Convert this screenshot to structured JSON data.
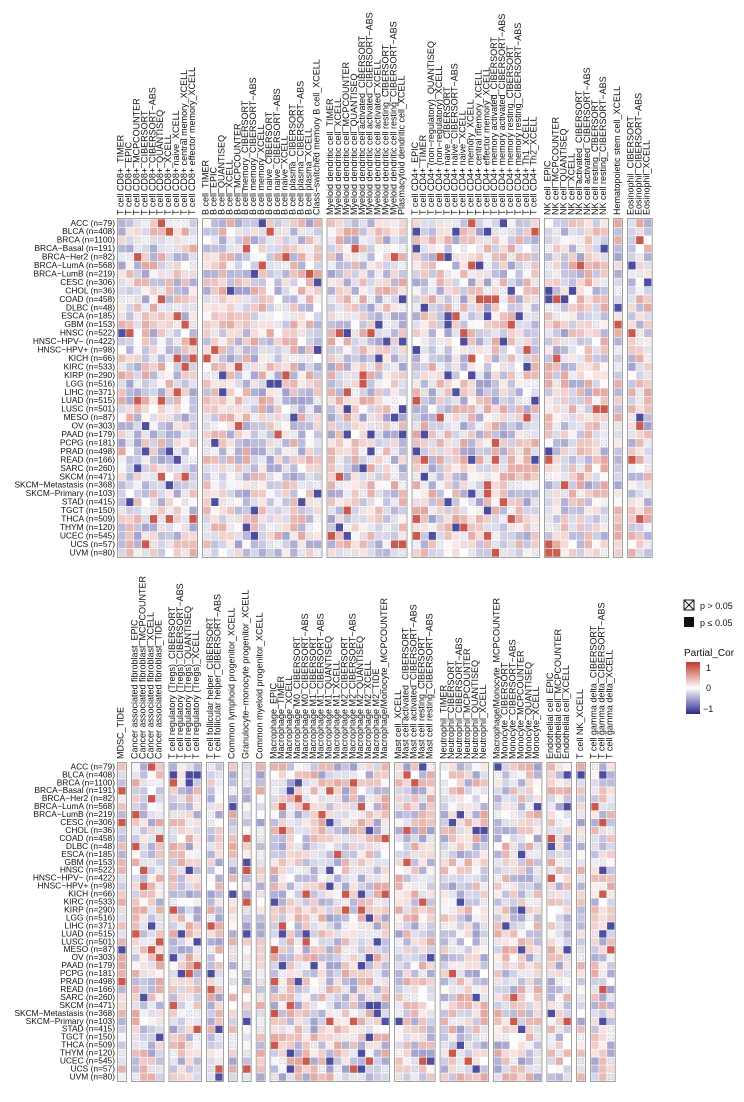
{
  "chart_data": {
    "type": "heatmap",
    "value_range": [
      -1,
      1
    ],
    "colors": {
      "negative": "#2b2a8c",
      "zero": "#ffffff",
      "positive": "#c0392b",
      "frame": "#8a8a8a",
      "highlight_label": "#c0392b"
    },
    "legend": {
      "nonsig_symbol_label": "p > 0.05",
      "sig_symbol_label": "p ≤ 0.05",
      "color_title": "Partial_Cor",
      "ticks": [
        "1",
        "0",
        "−1"
      ]
    },
    "rows": [
      "ACC (n=79)",
      "BLCA (n=408)",
      "BRCA (n=1100)",
      "BRCA−Basal (n=191)",
      "BRCA−Her2 (n=82)",
      "BRCA−LumA (n=568)",
      "BRCA−LumB (n=219)",
      "CESC (n=306)",
      "CHOL (n=36)",
      "COAD (n=458)",
      "DLBC (n=48)",
      "ESCA (n=185)",
      "GBM (n=153)",
      "HNSC (n=522)",
      "HNSC−HPV− (n=422)",
      "HNSC−HPV+ (n=98)",
      "KICH (n=66)",
      "KIRC (n=533)",
      "KIRP (n=290)",
      "LGG (n=516)",
      "LIHC (n=371)",
      "LUAD (n=515)",
      "LUSC (n=501)",
      "MESO (n=87)",
      "OV (n=303)",
      "PAAD (n=179)",
      "PCPG (n=181)",
      "PRAD (n=498)",
      "READ (n=166)",
      "SARC (n=260)",
      "SKCM (n=471)",
      "SKCM−Metastasis (n=368)",
      "SKCM−Primary (n=103)",
      "STAD (n=415)",
      "TGCT (n=150)",
      "THCA (n=509)",
      "THYM (n=120)",
      "UCEC (n=545)",
      "UCS (n=57)",
      "UVM (n=80)"
    ],
    "panels": [
      {
        "id": "top",
        "highlight_column": "T cell CD4+ Th2_XCELL",
        "groups": [
          [
            "T cell CD8+_TIMER",
            "T cell CD8+_EPIC",
            "T cell CD8+_MCPCOUNTER",
            "T cell CD8+_CIBERSORT",
            "T cell CD8+_CIBERSORT−ABS",
            "T cell CD8+_QUANTISEQ",
            "T cell CD8+_XCELL",
            "T cell CD8+ naive_XCELL",
            "T cell CD8+ central memory_XCELL",
            "T cell CD8+ effector memory_XCELL"
          ],
          [
            "B cell_TIMER",
            "B cell_EPIC",
            "B cell_QUANTISEQ",
            "B cell_XCELL",
            "B cell_MCPCOUNTER",
            "B cell memory_CIBERSORT",
            "B cell memory_CIBERSORT−ABS",
            "B cell memory_XCELL",
            "B cell naive_CIBERSORT",
            "B cell naive_CIBERSORT−ABS",
            "B cell naive_XCELL",
            "B cell plasma_CIBERSORT",
            "B cell plasma_CIBERSORT−ABS",
            "B cell plasma_XCELL",
            "Class−switched memory B cell_XCELL"
          ],
          [
            "Myeloid dendritic cell_TIMER",
            "Myeloid dendritic cell_XCELL",
            "Myeloid dendritic cell_MCPCOUNTER",
            "Myeloid dendritic cell_QUANTISEQ",
            "Myeloid dendritic cell activated_CIBERSORT",
            "Myeloid dendritic cell activated_CIBERSORT−ABS",
            "Myeloid dendritic cell activated_XCELL",
            "Myeloid dendritic cell resting_CIBERSORT",
            "Myeloid dendritic cell resting_CIBERSORT−ABS",
            "Plasmacytoid dendritic cell_XCELL"
          ],
          [
            "T cell CD4+_EPIC",
            "T cell CD4+_TIMER",
            "T cell CD4+ (non−regulatory)_QUANTISEQ",
            "T cell CD4+ (non−regulatory)_XCELL",
            "T cell CD4+ naive_CIBERSORT",
            "T cell CD4+ naive_CIBERSORT−ABS",
            "T cell CD4+ naive_XCELL",
            "T cell CD4+ memory_XCELL",
            "T cell CD4+ central memory_XCELL",
            "T cell CD4+ effector memory_XCELL",
            "T cell CD4+ memory activated_CIBERSORT",
            "T cell CD4+ memory activated_CIBERSORT−ABS",
            "T cell CD4+ memory resting_CIBERSORT",
            "T cell CD4+ memory resting_CIBERSORT−ABS",
            "T cell CD4+ Th1_XCELL",
            "T cell CD4+ Th2_XCELL"
          ],
          [
            "NK cell_EPIC",
            "NK cell_MCPCOUNTER",
            "NK cell_QUANTISEQ",
            "NK cell_XCELL",
            "NK cell activated_CIBERSORT",
            "NK cell activated_CIBERSORT−ABS",
            "NK cell resting_CIBERSORT",
            "NK cell resting_CIBERSORT−ABS"
          ],
          [
            "Hematopoietic stem cell_XCELL"
          ],
          [
            "Eosinophil_CIBERSORT",
            "Eosinophil_CIBERSORT−ABS",
            "Eosinophil_XCELL"
          ]
        ]
      },
      {
        "id": "bottom",
        "highlight_column": "MDSC_TIDE",
        "groups": [
          [
            "MDSC_TIDE"
          ],
          [
            "Cancer associated fibroblast_EPIC",
            "Cancer associated fibroblast_MCPCOUNTER",
            "Cancer associated fibroblast_XCELL",
            "Cancer associated fibroblast_TIDE"
          ],
          [
            "T cell regulatory (Tregs)_CIBERSORT",
            "T cell regulatory (Tregs)_CIBERSORT−ABS",
            "T cell regulatory (Tregs)_QUANTISEQ",
            "T cell regulatory (Tregs)_XCELL"
          ],
          [
            "T cell follicular helper_CIBERSORT",
            "T cell follicular helper_CIBERSORT−ABS"
          ],
          [
            "Common lymphoid progenitor_XCELL"
          ],
          [
            "Granulocyte−monocyte progenitor_XCELL"
          ],
          [
            "Common myeloid progenitor_XCELL"
          ],
          [
            "Macrophage_EPIC",
            "Macrophage_TIMER",
            "Macrophage_XCELL",
            "Macrophage M0_CIBERSORT",
            "Macrophage M0_CIBERSORT−ABS",
            "Macrophage M1_CIBERSORT",
            "Macrophage M1_CIBERSORT−ABS",
            "Macrophage M1_QUANTISEQ",
            "Macrophage M1_XCELL",
            "Macrophage M2_CIBERSORT",
            "Macrophage M2_CIBERSORT−ABS",
            "Macrophage M2_QUANTISEQ",
            "Macrophage M2_XCELL",
            "Macrophage M2_TIDE",
            "Macrophage/Monocyte_MCPCOUNTER"
          ],
          [
            "Mast cell_XCELL",
            "Mast cell activated_CIBERSORT",
            "Mast cell activated_CIBERSORT−ABS",
            "Mast cell resting_CIBERSORT",
            "Mast cell resting_CIBERSORT−ABS"
          ],
          [
            "Neutrophil_TIMER",
            "Neutrophil_CIBERSORT",
            "Neutrophil_CIBERSORT−ABS",
            "Neutrophil_MCPCOUNTER",
            "Neutrophil_QUANTISEQ",
            "Neutrophil_XCELL"
          ],
          [
            "Macrophage/Monocyte_MCPCOUNTER",
            "Monocyte_CIBERSORT",
            "Monocyte_CIBERSORT−ABS",
            "Monocyte_MCPCOUNTER",
            "Monocyte_QUANTISEQ",
            "Monocyte_XCELL"
          ],
          [
            "Endothelial cell_EPIC",
            "Endothelial cell_MCPCOUNTER",
            "Endothelial cell_XCELL"
          ],
          [
            "T cell NK_XCELL"
          ],
          [
            "T cell gamma delta_CIBERSORT",
            "T cell gamma delta_CIBERSORT−ABS",
            "T cell gamma delta_XCELL"
          ]
        ]
      }
    ]
  }
}
